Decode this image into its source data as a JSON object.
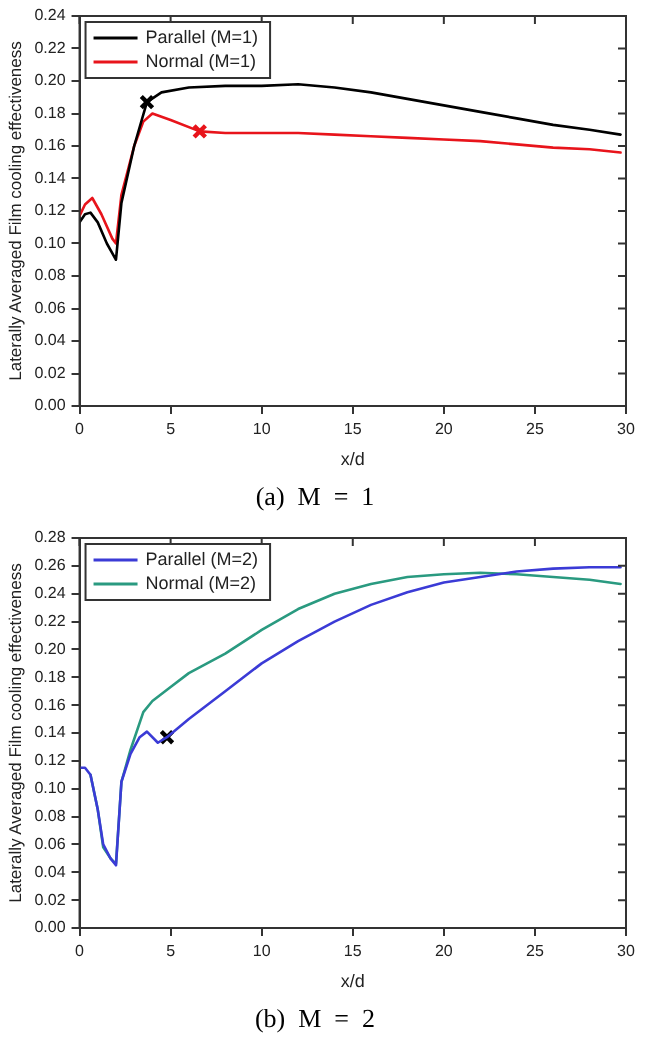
{
  "chart_data": [
    {
      "type": "line",
      "title": "(a)  M  =  1",
      "xlabel": "x/d",
      "ylabel": "Laterally Averaged Film cooling effectiveness",
      "legend": "top left",
      "grid": false,
      "marker": "none",
      "line_style": "solid",
      "xlim": [
        0,
        30
      ],
      "xticks": [
        0,
        5,
        10,
        15,
        20,
        25,
        30
      ],
      "ylim": [
        0,
        0.24
      ],
      "yticks": [
        {
          "value": 0,
          "label": "0.00"
        },
        {
          "value": 0.02,
          "label": "0.02"
        },
        {
          "value": 0.04,
          "label": "0.04"
        },
        {
          "value": 0.06,
          "label": "0.06"
        },
        {
          "value": 0.08,
          "label": "0.08"
        },
        {
          "value": 0.1,
          "label": "0.10"
        },
        {
          "value": 0.12,
          "label": "0.12"
        },
        {
          "value": 0.14,
          "label": "0.14"
        },
        {
          "value": 0.16,
          "label": "0.16"
        },
        {
          "value": 0.18,
          "label": "0.18"
        },
        {
          "value": 0.2,
          "label": "0.20"
        },
        {
          "value": 0.22,
          "label": "0.22"
        },
        {
          "value": 0.24,
          "label": "0.24"
        }
      ],
      "series": [
        {
          "name": "Parallel (M=1)",
          "color": "#000000",
          "x": [
            0,
            0.3,
            0.6,
            1,
            1.5,
            2,
            2.3,
            3,
            3.7,
            4.5,
            6,
            8,
            10,
            12,
            14,
            16,
            18,
            20,
            22,
            24,
            26,
            28,
            29.7
          ],
          "values": [
            0.113,
            0.118,
            0.119,
            0.113,
            0.1,
            0.09,
            0.125,
            0.16,
            0.187,
            0.193,
            0.196,
            0.197,
            0.197,
            0.198,
            0.196,
            0.193,
            0.189,
            0.185,
            0.181,
            0.177,
            0.173,
            0.17,
            0.167
          ]
        },
        {
          "name": "Normal (M=1)",
          "color": "#e8141b",
          "x": [
            0,
            0.3,
            0.7,
            1.2,
            1.8,
            2,
            2.3,
            3,
            3.5,
            4,
            5,
            6.6,
            8,
            10,
            12,
            14,
            16,
            18,
            20,
            22,
            24,
            26,
            28,
            29.7
          ],
          "values": [
            0.117,
            0.124,
            0.128,
            0.118,
            0.103,
            0.1,
            0.13,
            0.16,
            0.175,
            0.18,
            0.176,
            0.169,
            0.168,
            0.168,
            0.168,
            0.167,
            0.166,
            0.165,
            0.164,
            0.163,
            0.161,
            0.159,
            0.158,
            0.156
          ]
        },
        {
          "type": "scatter",
          "marker": "cross",
          "color": "#000000",
          "x": [
            3.7
          ],
          "values": [
            0.187
          ]
        },
        {
          "type": "scatter",
          "marker": "cross",
          "color": "#e8141b",
          "x": [
            6.6
          ],
          "values": [
            0.169
          ]
        }
      ]
    },
    {
      "type": "line",
      "title": "(b)  M  =  2",
      "xlabel": "x/d",
      "ylabel": "Laterally Averaged Film cooling effectiveness",
      "legend": "top left",
      "grid": false,
      "marker": "none",
      "line_style": "solid",
      "xlim": [
        0,
        30
      ],
      "xticks": [
        0,
        5,
        10,
        15,
        20,
        25,
        30
      ],
      "ylim": [
        0,
        0.28
      ],
      "yticks": [
        {
          "value": 0,
          "label": "0.00"
        },
        {
          "value": 0.02,
          "label": "0.02"
        },
        {
          "value": 0.04,
          "label": "0.04"
        },
        {
          "value": 0.06,
          "label": "0.06"
        },
        {
          "value": 0.08,
          "label": "0.08"
        },
        {
          "value": 0.1,
          "label": "0.10"
        },
        {
          "value": 0.12,
          "label": "0.12"
        },
        {
          "value": 0.14,
          "label": "0.14"
        },
        {
          "value": 0.16,
          "label": "0.16"
        },
        {
          "value": 0.18,
          "label": "0.18"
        },
        {
          "value": 0.2,
          "label": "0.20"
        },
        {
          "value": 0.22,
          "label": "0.22"
        },
        {
          "value": 0.24,
          "label": "0.24"
        },
        {
          "value": 0.26,
          "label": "0.26"
        },
        {
          "value": 0.28,
          "label": "0.28"
        }
      ],
      "series": [
        {
          "name": "Parallel (M=2)",
          "color": "#3b3bd6",
          "x": [
            0,
            0.3,
            0.6,
            1,
            1.3,
            1.7,
            2,
            2.3,
            2.8,
            3.3,
            3.7,
            4.3,
            4.8,
            6,
            8,
            10,
            12,
            14,
            16,
            18,
            20,
            22,
            24,
            26,
            28,
            29.7
          ],
          "values": [
            0.115,
            0.115,
            0.11,
            0.085,
            0.06,
            0.05,
            0.045,
            0.105,
            0.125,
            0.137,
            0.141,
            0.133,
            0.137,
            0.15,
            0.17,
            0.19,
            0.206,
            0.22,
            0.232,
            0.241,
            0.248,
            0.252,
            0.256,
            0.258,
            0.259,
            0.259
          ]
        },
        {
          "name": "Normal (M=2)",
          "color": "#2a9a80",
          "x": [
            0.6,
            1,
            1.3,
            1.7,
            2,
            2.3,
            2.8,
            3.5,
            4,
            5,
            6,
            8,
            10,
            12,
            14,
            16,
            18,
            20,
            22,
            24,
            26,
            28,
            29.7
          ],
          "values": [
            0.11,
            0.085,
            0.058,
            0.05,
            0.046,
            0.105,
            0.128,
            0.155,
            0.163,
            0.173,
            0.183,
            0.197,
            0.214,
            0.229,
            0.24,
            0.247,
            0.252,
            0.254,
            0.255,
            0.254,
            0.252,
            0.25,
            0.247
          ]
        },
        {
          "type": "scatter",
          "marker": "cross",
          "color": "#000000",
          "x": [
            4.8
          ],
          "values": [
            0.137
          ]
        }
      ]
    }
  ]
}
